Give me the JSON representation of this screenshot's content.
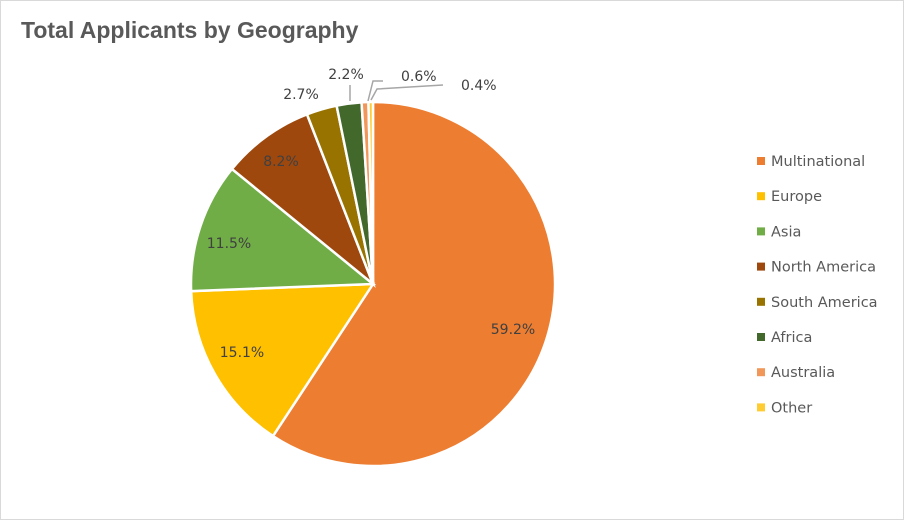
{
  "chart_data": {
    "type": "pie",
    "title": "Total Applicants by Geography",
    "categories": [
      "Multinational",
      "Europe",
      "Asia",
      "North America",
      "South America",
      "Africa",
      "Australia",
      "Other"
    ],
    "values": [
      59.2,
      15.1,
      11.5,
      8.2,
      2.7,
      2.2,
      0.6,
      0.4
    ],
    "data_labels": [
      "59.2%",
      "15.1%",
      "11.5%",
      "8.2%",
      "2.7%",
      "2.2%",
      "0.6%",
      "0.4%"
    ],
    "colors": [
      "#ED7D31",
      "#FFC000",
      "#70AD47",
      "#9E480E",
      "#997300",
      "#43682B",
      "#F1975A",
      "#FFCD33"
    ],
    "unit": "%",
    "start_angle": "12 o'clock, clockwise",
    "legend": "right"
  }
}
